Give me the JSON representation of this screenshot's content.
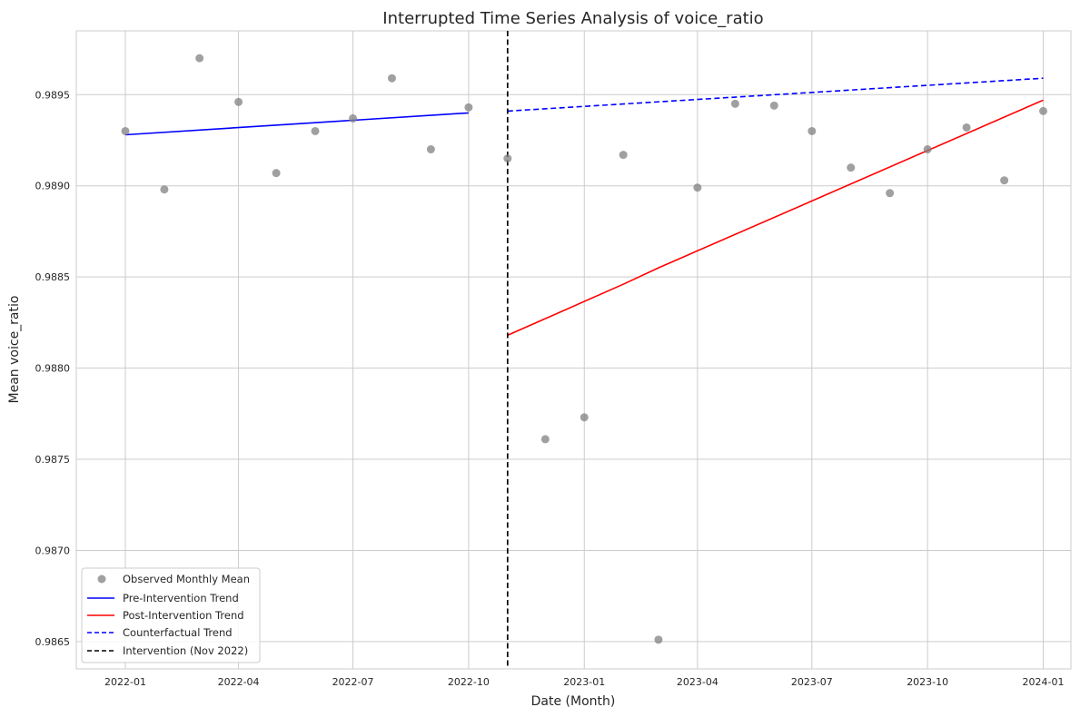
{
  "chart_data": {
    "type": "line",
    "title": "Interrupted Time Series Analysis of voice_ratio",
    "xlabel": "Date (Month)",
    "ylabel": "Mean voice_ratio",
    "x_range": [
      "2021-11-23",
      "2024-01-23"
    ],
    "ylim": [
      0.98635,
      0.98985
    ],
    "grid": true,
    "legend_position": "bottom-left",
    "x_ticks": [
      {
        "date": "2022-01-01",
        "label": "2022-01"
      },
      {
        "date": "2022-04-01",
        "label": "2022-04"
      },
      {
        "date": "2022-07-01",
        "label": "2022-07"
      },
      {
        "date": "2022-10-01",
        "label": "2022-10"
      },
      {
        "date": "2023-01-01",
        "label": "2023-01"
      },
      {
        "date": "2023-04-01",
        "label": "2023-04"
      },
      {
        "date": "2023-07-01",
        "label": "2023-07"
      },
      {
        "date": "2023-10-01",
        "label": "2023-10"
      },
      {
        "date": "2024-01-01",
        "label": "2024-01"
      }
    ],
    "y_ticks": [
      {
        "value": 0.9865,
        "label": "0.9865"
      },
      {
        "value": 0.987,
        "label": "0.9870"
      },
      {
        "value": 0.9875,
        "label": "0.9875"
      },
      {
        "value": 0.988,
        "label": "0.9880"
      },
      {
        "value": 0.9885,
        "label": "0.9885"
      },
      {
        "value": 0.989,
        "label": "0.9890"
      },
      {
        "value": 0.9895,
        "label": "0.9895"
      }
    ],
    "observed": {
      "name": "Observed Monthly Mean",
      "color": "#808080",
      "points": [
        {
          "x": "2022-01-01",
          "y": 0.9893
        },
        {
          "x": "2022-02-01",
          "y": 0.98898
        },
        {
          "x": "2022-03-01",
          "y": 0.9897
        },
        {
          "x": "2022-04-01",
          "y": 0.98946
        },
        {
          "x": "2022-05-01",
          "y": 0.98907
        },
        {
          "x": "2022-06-01",
          "y": 0.9893
        },
        {
          "x": "2022-07-01",
          "y": 0.98937
        },
        {
          "x": "2022-08-01",
          "y": 0.98959
        },
        {
          "x": "2022-09-01",
          "y": 0.9892
        },
        {
          "x": "2022-10-01",
          "y": 0.98943
        },
        {
          "x": "2022-11-01",
          "y": 0.98915
        },
        {
          "x": "2022-12-01",
          "y": 0.98761
        },
        {
          "x": "2023-01-01",
          "y": 0.98773
        },
        {
          "x": "2023-02-01",
          "y": 0.98917
        },
        {
          "x": "2023-03-01",
          "y": 0.98651
        },
        {
          "x": "2023-04-01",
          "y": 0.98899
        },
        {
          "x": "2023-05-01",
          "y": 0.98945
        },
        {
          "x": "2023-06-01",
          "y": 0.98944
        },
        {
          "x": "2023-07-01",
          "y": 0.9893
        },
        {
          "x": "2023-08-01",
          "y": 0.9891
        },
        {
          "x": "2023-09-01",
          "y": 0.98896
        },
        {
          "x": "2023-10-01",
          "y": 0.9892
        },
        {
          "x": "2023-11-01",
          "y": 0.98932
        },
        {
          "x": "2023-12-01",
          "y": 0.98903
        },
        {
          "x": "2024-01-01",
          "y": 0.98941
        }
      ]
    },
    "lines": [
      {
        "name": "Pre-Intervention Trend",
        "color": "#0000ff",
        "style": "solid",
        "points": [
          {
            "x": "2022-01-01",
            "y": 0.98928
          },
          {
            "x": "2022-10-01",
            "y": 0.9894
          }
        ]
      },
      {
        "name": "Post-Intervention Trend",
        "color": "#ff0000",
        "style": "solid",
        "points": [
          {
            "x": "2022-11-01",
            "y": 0.98818
          },
          {
            "x": "2023-02-01",
            "y": 0.98846
          },
          {
            "x": "2023-03-01",
            "y": 0.98855
          },
          {
            "x": "2024-01-01",
            "y": 0.98947
          }
        ]
      },
      {
        "name": "Counterfactual Trend",
        "color": "#0000ff",
        "style": "dashed",
        "points": [
          {
            "x": "2022-11-01",
            "y": 0.98941
          },
          {
            "x": "2024-01-01",
            "y": 0.98959
          }
        ]
      }
    ],
    "intervention": {
      "name": "Intervention (Nov 2022)",
      "date": "2022-11-01",
      "color": "#000000",
      "style": "dashed"
    }
  }
}
